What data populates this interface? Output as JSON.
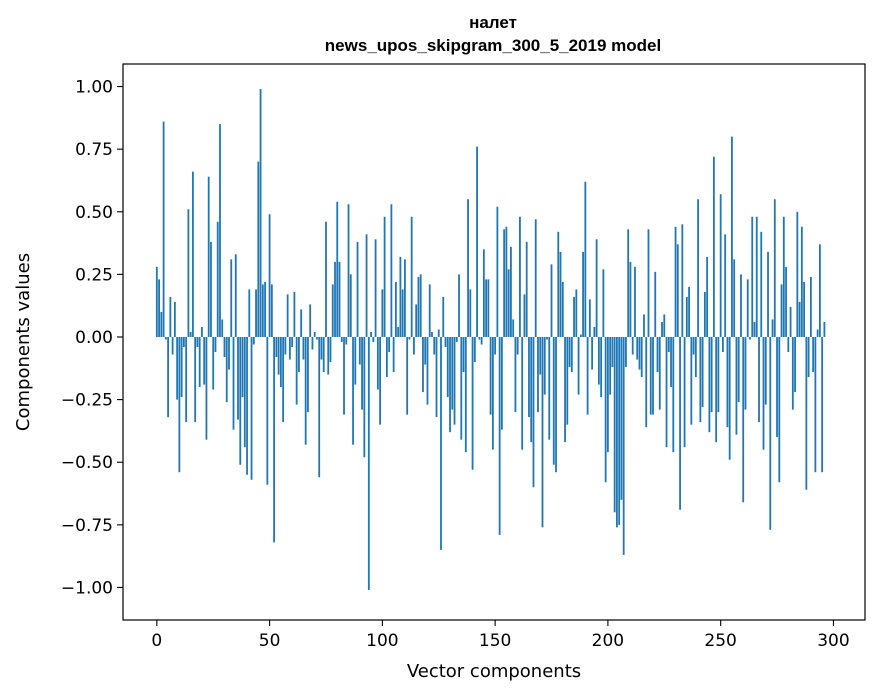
{
  "chart_data": {
    "type": "bar",
    "title": [
      "налет",
      "news_upos_skipgram_300_5_2019 model"
    ],
    "xlabel": "Vector components",
    "ylabel": "Components values",
    "xlim": [
      -15,
      314
    ],
    "ylim": [
      -1.13,
      1.09
    ],
    "xticks": [
      0,
      50,
      100,
      150,
      200,
      250,
      300
    ],
    "xtick_labels": [
      "0",
      "50",
      "100",
      "150",
      "200",
      "250",
      "300"
    ],
    "yticks": [
      1.0,
      0.75,
      0.5,
      0.25,
      0.0,
      -0.25,
      -0.5,
      -0.75,
      -1.0
    ],
    "ytick_labels": [
      "1.00",
      "0.75",
      "0.50",
      "0.25",
      "0.00",
      "−0.25",
      "−0.50",
      "−0.75",
      "−1.00"
    ],
    "grid": false,
    "bar_color": "#1f77b4",
    "series": [
      {
        "name": "налет",
        "values": [
          0.28,
          0.23,
          0.1,
          0.86,
          -0.01,
          -0.32,
          0.16,
          -0.07,
          0.14,
          -0.25,
          -0.54,
          -0.24,
          -0.04,
          -0.34,
          0.51,
          0.02,
          0.66,
          -0.34,
          -0.04,
          -0.2,
          0.04,
          -0.19,
          -0.41,
          0.64,
          0.38,
          -0.21,
          -0.06,
          0.46,
          0.85,
          0.07,
          -0.08,
          -0.26,
          -0.13,
          0.31,
          -0.37,
          0.33,
          -0.33,
          -0.51,
          -0.24,
          -0.44,
          -0.55,
          0.19,
          -0.57,
          -0.03,
          0.19,
          0.7,
          0.99,
          0.21,
          0.22,
          -0.59,
          0.49,
          0.21,
          -0.82,
          -0.08,
          -0.15,
          -0.2,
          -0.34,
          -0.07,
          0.17,
          -0.09,
          -0.04,
          0.18,
          -0.27,
          -0.14,
          0.11,
          -0.09,
          -0.43,
          -0.3,
          0.13,
          -0.05,
          0.02,
          -0.01,
          -0.56,
          -0.09,
          -0.14,
          0.46,
          -0.15,
          -0.1,
          0.21,
          0.3,
          0.54,
          0.3,
          -0.02,
          -0.31,
          -0.03,
          0.53,
          0.25,
          -0.43,
          -0.19,
          0.38,
          -0.11,
          -0.29,
          -0.48,
          0.41,
          -1.01,
          0.02,
          -0.02,
          0.39,
          -0.21,
          -0.35,
          0.19,
          0.48,
          -0.16,
          -0.06,
          0.53,
          -0.14,
          0.22,
          0.04,
          0.32,
          0.19,
          0.31,
          -0.31,
          -0.01,
          0.48,
          -0.07,
          0.13,
          0.24,
          0.25,
          -0.22,
          -0.11,
          -0.27,
          0.21,
          0.02,
          -0.07,
          -0.32,
          0.03,
          -0.85,
          0.16,
          -0.04,
          -0.24,
          -0.38,
          -0.29,
          -0.35,
          -0.02,
          0.25,
          -0.41,
          -0.14,
          -0.46,
          0.55,
          0.19,
          -0.53,
          -0.1,
          0.76,
          -0.01,
          -0.03,
          0.35,
          0.23,
          0.23,
          -0.31,
          -0.45,
          -0.07,
          0.52,
          -0.79,
          -0.37,
          0.43,
          0.44,
          0.27,
          0.36,
          0.07,
          -0.3,
          -0.07,
          0.48,
          -0.45,
          0.17,
          0.38,
          -0.32,
          -0.42,
          -0.6,
          0.47,
          -0.3,
          -0.15,
          -0.76,
          -0.23,
          -0.01,
          -0.41,
          0.29,
          -0.51,
          -0.54,
          0.42,
          0.34,
          0.22,
          -0.42,
          -0.35,
          -0.12,
          -0.14,
          0.16,
          0.19,
          -0.23,
          0.01,
          0.34,
          0.62,
          -0.31,
          0.15,
          -0.13,
          0.04,
          0.39,
          -0.19,
          -0.24,
          0.27,
          -0.58,
          -0.46,
          -0.23,
          -0.12,
          -0.7,
          -0.76,
          -0.75,
          -0.65,
          -0.87,
          -0.12,
          0.43,
          0.3,
          -0.07,
          0.28,
          -0.09,
          -0.13,
          -0.16,
          0.09,
          -0.36,
          0.43,
          -0.31,
          -0.31,
          0.26,
          -0.14,
          -0.29,
          0.06,
          0.09,
          -0.44,
          -0.06,
          -0.2,
          -0.46,
          0.44,
          0.37,
          -0.69,
          0.45,
          -0.44,
          0.16,
          0.2,
          -0.35,
          -0.07,
          -0.16,
          0.55,
          -0.34,
          -0.28,
          0.18,
          0.32,
          -0.38,
          -0.3,
          0.72,
          -0.42,
          -0.3,
          0.57,
          -0.06,
          0.41,
          -0.36,
          -0.49,
          0.8,
          0.31,
          -0.39,
          -0.26,
          0.25,
          -0.66,
          -0.29,
          0.23,
          -0.01,
          0.48,
          0.06,
          0.48,
          -0.34,
          0.42,
          -0.45,
          -0.27,
          0.34,
          -0.77,
          0.07,
          0.55,
          -0.4,
          -0.58,
          0.21,
          0.48,
          0.28,
          -0.06,
          0.12,
          -0.29,
          -0.22,
          0.5,
          0.14,
          0.44,
          0.22,
          -0.61,
          -0.16,
          0.24,
          -0.14,
          -0.54,
          0.03,
          0.37,
          -0.54,
          0.06
        ]
      }
    ]
  }
}
